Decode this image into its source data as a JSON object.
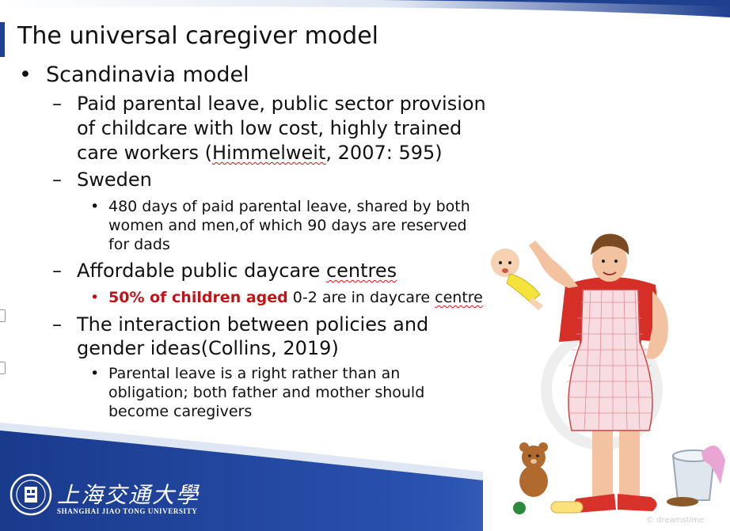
{
  "title": "The universal caregiver model",
  "bullets": {
    "scandinavia": "Scandinavia model",
    "paid_leave": [
      "Paid parental leave, public sector provision",
      "of childcare with low cost, highly trained",
      "care workers (",
      "Himmelweit",
      ", 2007: 595)"
    ],
    "sweden": "Sweden",
    "sweden_detail": [
      "480 days of paid parental leave, shared by both",
      "women and men,of which 90 days are reserved",
      "for dads"
    ],
    "daycare": {
      "before": "Affordable public daycare ",
      "underlined": "centres"
    },
    "daycare_detail": {
      "red": "50% of children aged",
      "rest": " 0-2 are in daycare ",
      "underlined": "centre"
    },
    "interaction": [
      "The interaction between policies and",
      "gender ideas(Collins, 2019)"
    ],
    "interaction_detail": [
      "Parental leave is a right rather than an",
      "obligation; both father and mother should",
      "become caregivers"
    ],
    "dash": "–",
    "dot": "•"
  },
  "university": {
    "name_cn": "上海交通大學",
    "name_en": "SHANGHAI JIAO TONG UNIVERSITY"
  },
  "watermark": "© dreamstime",
  "colors": {
    "accent_blue": "#1f3f8f",
    "highlight_red": "#c0141b"
  },
  "illustration": "father-holding-baby-in-apron-illustration"
}
